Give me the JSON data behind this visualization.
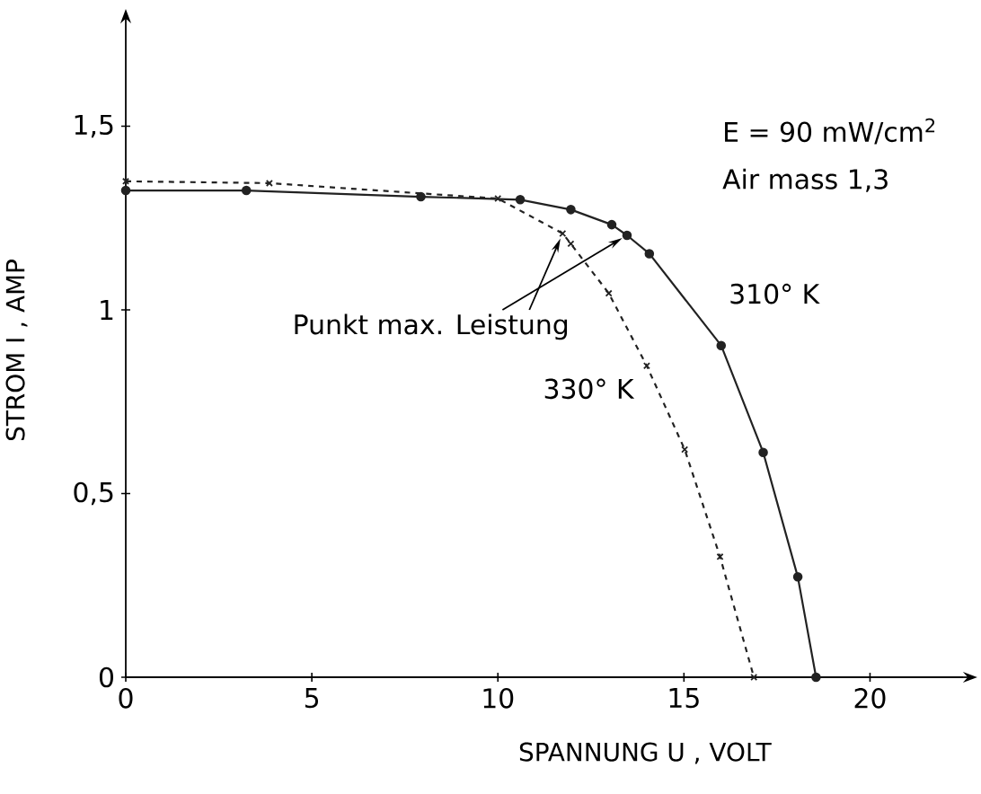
{
  "chart_data": {
    "type": "line",
    "xlabel": "SPANNUNG U , VOLT",
    "ylabel": "STROM I , AMP",
    "xlim": [
      0,
      22.5
    ],
    "ylim": [
      0,
      1.78
    ],
    "xticks": [
      0,
      5,
      10,
      15,
      20
    ],
    "yticks": [
      0,
      {
        "value": 0.5,
        "label": "0,5"
      },
      1,
      {
        "value": 1.5,
        "label": "1,5"
      }
    ],
    "grid": false,
    "series": [
      {
        "name": "310° K",
        "color": "#222222",
        "marker": "circle",
        "line_style": "solid",
        "x": [
          0,
          3.24,
          7.93,
          10.6,
          11.96,
          13.06,
          13.47,
          14.07,
          16.0,
          17.13,
          18.06,
          18.55
        ],
        "values": [
          1.325,
          1.325,
          1.308,
          1.3,
          1.273,
          1.232,
          1.203,
          1.153,
          0.903,
          0.612,
          0.273,
          0
        ]
      },
      {
        "name": "330° K",
        "color": "#222222",
        "marker": "cross",
        "line_style": "dashed",
        "x": [
          0,
          3.86,
          10.0,
          11.74,
          11.96,
          12.98,
          14.0,
          15.02,
          15.97,
          16.88
        ],
        "values": [
          1.35,
          1.345,
          1.303,
          1.208,
          1.18,
          1.045,
          0.848,
          0.62,
          0.328,
          0
        ]
      }
    ],
    "annotations": [
      "E = 90 mW/cm$^{2}$",
      "Air mass 1,3",
      {
        "text": "Punkt max. Leistung",
        "x": 13.47,
        "y": 1.203
      }
    ]
  }
}
